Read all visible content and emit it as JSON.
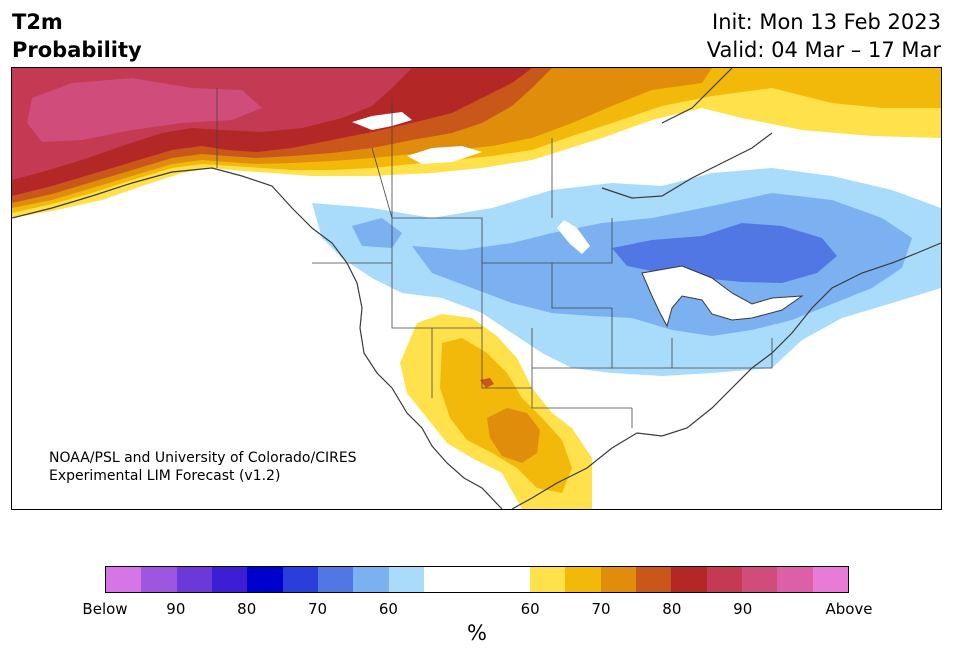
{
  "header": {
    "variable": "T2m",
    "measure": "Probability",
    "init": "Init: Mon 13 Feb 2023",
    "valid": "Valid: 04 Mar – 17 Mar"
  },
  "credit": {
    "line1": "NOAA/PSL and University of Colorado/CIRES",
    "line2": "Experimental LIM Forecast (v1.2)"
  },
  "colorbar": {
    "unit": "%",
    "tick_labels": [
      "Below",
      "90",
      "80",
      "70",
      "60",
      "60",
      "70",
      "80",
      "90",
      "Above"
    ],
    "below_colors": [
      "#d676e6",
      "#9e55df",
      "#6d38d8",
      "#3d1ed4",
      "#0000cd",
      "#2a3edb",
      "#5077e3",
      "#7bb1f0",
      "#a9dbfb"
    ],
    "neutral_color": "#ffffff",
    "above_colors": [
      "#ffe14c",
      "#f2b90a",
      "#e08d0c",
      "#c95719",
      "#b32727",
      "#c43a52",
      "#d04c7a",
      "#dc5fa8",
      "#e87ad8"
    ]
  },
  "map": {
    "land_color": "#ffffff",
    "coast_color": "#3a3a3a"
  }
}
